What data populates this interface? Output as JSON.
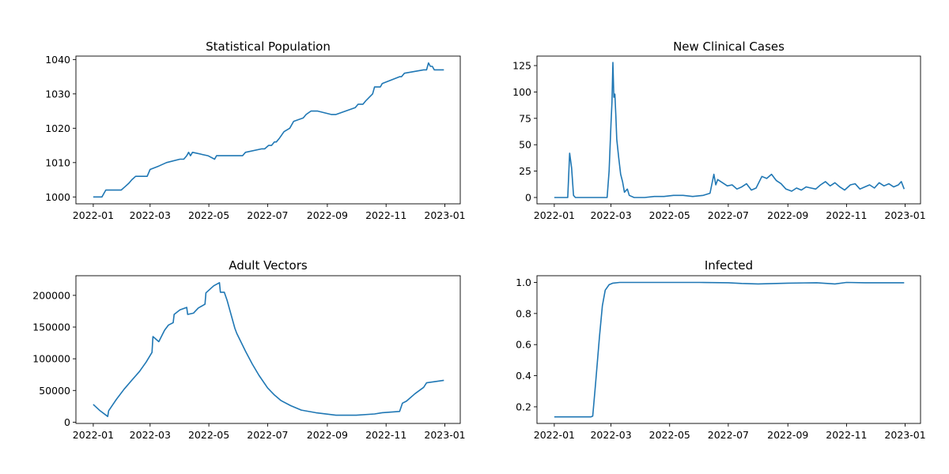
{
  "chart_data": [
    {
      "type": "line",
      "title": "Statistical Population",
      "xlabel": "",
      "ylabel": "",
      "x_ticks": [
        "2022-01",
        "2022-03",
        "2022-05",
        "2022-07",
        "2022-09",
        "2022-11",
        "2023-01"
      ],
      "y_ticks": [
        "1000",
        "1010",
        "1020",
        "1030",
        "1040"
      ],
      "xlim": [
        "2021-12-14",
        "2023-01-17"
      ],
      "ylim": [
        998,
        1041
      ],
      "series_color": "#1f77b4",
      "x": [
        "2022-01-01",
        "2022-01-10",
        "2022-01-12",
        "2022-01-14",
        "2022-01-30",
        "2022-02-03",
        "2022-02-07",
        "2022-02-10",
        "2022-02-14",
        "2022-02-26",
        "2022-03-01",
        "2022-03-10",
        "2022-03-18",
        "2022-04-01",
        "2022-04-05",
        "2022-04-08",
        "2022-04-10",
        "2022-04-12",
        "2022-04-14",
        "2022-04-30",
        "2022-05-07",
        "2022-05-09",
        "2022-06-05",
        "2022-06-08",
        "2022-06-25",
        "2022-06-28",
        "2022-07-02",
        "2022-07-05",
        "2022-07-08",
        "2022-07-10",
        "2022-07-13",
        "2022-07-18",
        "2022-07-24",
        "2022-07-28",
        "2022-08-07",
        "2022-08-10",
        "2022-08-15",
        "2022-08-22",
        "2022-09-05",
        "2022-09-08",
        "2022-09-10",
        "2022-09-30",
        "2022-10-03",
        "2022-10-07",
        "2022-10-08",
        "2022-10-11",
        "2022-10-18",
        "2022-10-20",
        "2022-10-26",
        "2022-10-28",
        "2022-11-15",
        "2022-11-17",
        "2022-11-20",
        "2022-12-10",
        "2022-12-13",
        "2022-12-15",
        "2022-12-17",
        "2022-12-19",
        "2022-12-21",
        "2022-12-31"
      ],
      "values": [
        1000,
        1000,
        1001,
        1002,
        1002,
        1003,
        1004,
        1005,
        1006,
        1006,
        1008,
        1009,
        1010,
        1011,
        1011,
        1012,
        1013,
        1012,
        1013,
        1012,
        1011,
        1012,
        1012,
        1013,
        1014,
        1014,
        1015,
        1015,
        1016,
        1016,
        1017,
        1019,
        1020,
        1022,
        1023,
        1024,
        1025,
        1025,
        1024,
        1024,
        1024,
        1026,
        1027,
        1027,
        1027,
        1028,
        1030,
        1032,
        1032,
        1033,
        1035,
        1035,
        1036,
        1037,
        1037,
        1039,
        1038,
        1038,
        1037,
        1037
      ]
    },
    {
      "type": "line",
      "title": "New Clinical Cases",
      "xlabel": "",
      "ylabel": "",
      "x_ticks": [
        "2022-01",
        "2022-03",
        "2022-05",
        "2022-07",
        "2022-09",
        "2022-11",
        "2023-01"
      ],
      "y_ticks": [
        "0",
        "25",
        "50",
        "75",
        "100",
        "125"
      ],
      "xlim": [
        "2021-12-14",
        "2023-01-17"
      ],
      "ylim": [
        -6,
        134
      ],
      "series_color": "#1f77b4",
      "x": [
        "2022-01-01",
        "2022-01-15",
        "2022-01-17",
        "2022-01-19",
        "2022-01-21",
        "2022-01-23",
        "2022-02-25",
        "2022-02-27",
        "2022-03-01",
        "2022-03-02",
        "2022-03-03",
        "2022-03-04",
        "2022-03-05",
        "2022-03-06",
        "2022-03-07",
        "2022-03-09",
        "2022-03-11",
        "2022-03-13",
        "2022-03-15",
        "2022-03-18",
        "2022-03-20",
        "2022-03-25",
        "2022-04-05",
        "2022-04-15",
        "2022-04-25",
        "2022-05-05",
        "2022-05-15",
        "2022-05-25",
        "2022-06-05",
        "2022-06-12",
        "2022-06-16",
        "2022-06-18",
        "2022-06-20",
        "2022-06-25",
        "2022-06-30",
        "2022-07-05",
        "2022-07-10",
        "2022-07-15",
        "2022-07-20",
        "2022-07-25",
        "2022-07-30",
        "2022-08-05",
        "2022-08-10",
        "2022-08-15",
        "2022-08-20",
        "2022-08-25",
        "2022-08-30",
        "2022-09-05",
        "2022-09-10",
        "2022-09-15",
        "2022-09-20",
        "2022-09-25",
        "2022-09-30",
        "2022-10-05",
        "2022-10-10",
        "2022-10-15",
        "2022-10-20",
        "2022-10-25",
        "2022-10-30",
        "2022-11-05",
        "2022-11-10",
        "2022-11-15",
        "2022-11-20",
        "2022-11-25",
        "2022-11-30",
        "2022-12-05",
        "2022-12-10",
        "2022-12-15",
        "2022-12-20",
        "2022-12-25",
        "2022-12-28",
        "2022-12-31"
      ],
      "values": [
        0,
        0,
        42,
        28,
        2,
        0,
        0,
        25,
        70,
        90,
        128,
        95,
        98,
        78,
        55,
        38,
        22,
        15,
        5,
        8,
        2,
        0,
        0,
        1,
        1,
        2,
        2,
        1,
        2,
        4,
        22,
        12,
        17,
        14,
        11,
        12,
        8,
        10,
        13,
        7,
        9,
        20,
        18,
        22,
        16,
        13,
        8,
        6,
        9,
        7,
        10,
        9,
        8,
        12,
        15,
        11,
        14,
        10,
        7,
        12,
        13,
        8,
        10,
        12,
        9,
        14,
        11,
        13,
        10,
        12,
        15,
        8
      ]
    },
    {
      "type": "line",
      "title": "Adult Vectors",
      "xlabel": "",
      "ylabel": "",
      "x_ticks": [
        "2022-01",
        "2022-03",
        "2022-05",
        "2022-07",
        "2022-09",
        "2022-11",
        "2023-01"
      ],
      "y_ticks": [
        "0",
        "50000",
        "100000",
        "150000",
        "200000"
      ],
      "xlim": [
        "2021-12-14",
        "2023-01-17"
      ],
      "ylim": [
        -2000,
        231000
      ],
      "series_color": "#1f77b4",
      "x": [
        "2022-01-01",
        "2022-01-08",
        "2022-01-16",
        "2022-01-17",
        "2022-01-25",
        "2022-02-02",
        "2022-02-10",
        "2022-02-18",
        "2022-02-25",
        "2022-03-03",
        "2022-03-04",
        "2022-03-10",
        "2022-03-16",
        "2022-03-20",
        "2022-03-25",
        "2022-03-26",
        "2022-04-01",
        "2022-04-08",
        "2022-04-09",
        "2022-04-15",
        "2022-04-20",
        "2022-04-27",
        "2022-04-28",
        "2022-05-06",
        "2022-05-12",
        "2022-05-13",
        "2022-05-17",
        "2022-05-20",
        "2022-05-28",
        "2022-05-30",
        "2022-06-08",
        "2022-06-15",
        "2022-06-22",
        "2022-07-01",
        "2022-07-08",
        "2022-07-15",
        "2022-07-25",
        "2022-08-05",
        "2022-08-20",
        "2022-09-10",
        "2022-10-01",
        "2022-10-20",
        "2022-10-28",
        "2022-11-15",
        "2022-11-18",
        "2022-11-22",
        "2022-12-01",
        "2022-12-10",
        "2022-12-13",
        "2022-12-31"
      ],
      "values": [
        28000,
        18000,
        9000,
        18000,
        36000,
        52000,
        66000,
        80000,
        95000,
        110000,
        135000,
        127000,
        145000,
        153000,
        157000,
        170000,
        177000,
        181000,
        170000,
        172000,
        180000,
        186000,
        204000,
        215000,
        220000,
        205000,
        205000,
        192000,
        148000,
        140000,
        112000,
        92000,
        74000,
        54000,
        43000,
        34000,
        26000,
        19000,
        15000,
        11000,
        11000,
        13000,
        15000,
        17000,
        30000,
        33000,
        45000,
        55000,
        62000,
        66000
      ]
    },
    {
      "type": "line",
      "title": "Infected",
      "xlabel": "",
      "ylabel": "",
      "x_ticks": [
        "2022-01",
        "2022-03",
        "2022-05",
        "2022-07",
        "2022-09",
        "2022-11",
        "2023-01"
      ],
      "y_ticks": [
        "0.2",
        "0.4",
        "0.6",
        "0.8",
        "1.0"
      ],
      "xlim": [
        "2021-12-14",
        "2023-01-17"
      ],
      "ylim": [
        0.093,
        1.043
      ],
      "series_color": "#1f77b4",
      "x": [
        "2022-01-01",
        "2022-01-20",
        "2022-02-08",
        "2022-02-10",
        "2022-02-13",
        "2022-02-17",
        "2022-02-20",
        "2022-02-23",
        "2022-02-27",
        "2022-03-03",
        "2022-03-10",
        "2022-04-01",
        "2022-05-01",
        "2022-06-01",
        "2022-07-01",
        "2022-07-15",
        "2022-08-01",
        "2022-09-01",
        "2022-10-01",
        "2022-10-20",
        "2022-11-01",
        "2022-11-20",
        "2022-12-31"
      ],
      "values": [
        0.135,
        0.135,
        0.135,
        0.14,
        0.35,
        0.65,
        0.85,
        0.95,
        0.985,
        0.995,
        1.0,
        1.0,
        1.0,
        1.0,
        0.998,
        0.993,
        0.99,
        0.995,
        0.998,
        0.99,
        1.0,
        0.998,
        0.998
      ]
    }
  ]
}
